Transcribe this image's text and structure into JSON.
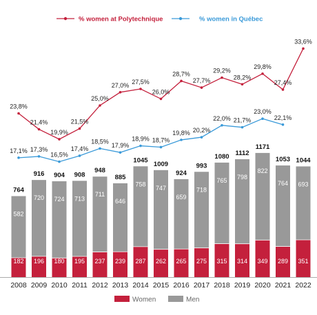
{
  "legend_top": [
    {
      "label": "% women at Polytechnique",
      "color": "#c4203c"
    },
    {
      "label": "% women in Québec",
      "color": "#3a9ad9"
    }
  ],
  "legend_bottom": [
    {
      "label": "Women",
      "color": "#c4203c"
    },
    {
      "label": "Men",
      "color": "#999999"
    }
  ],
  "chart_data": {
    "type": "bar",
    "stacked": true,
    "categories": [
      "2008",
      "2009",
      "2010",
      "2011",
      "2012",
      "2013",
      "2014",
      "2015",
      "2016",
      "2017",
      "2018",
      "2019",
      "2020",
      "2021",
      "2022"
    ],
    "totals": [
      764,
      916,
      904,
      908,
      948,
      885,
      1045,
      1009,
      924,
      993,
      1080,
      1112,
      1171,
      1053,
      1044
    ],
    "series": [
      {
        "name": "Women",
        "color": "#c4203c",
        "values": [
          182,
          196,
          180,
          195,
          237,
          239,
          287,
          262,
          265,
          275,
          315,
          314,
          349,
          289,
          351
        ]
      },
      {
        "name": "Men",
        "color": "#999999",
        "values": [
          582,
          720,
          724,
          713,
          711,
          646,
          758,
          747,
          659,
          718,
          765,
          798,
          822,
          764,
          693
        ]
      }
    ],
    "lines": [
      {
        "name": "% women at Polytechnique",
        "color": "#c4203c",
        "values": [
          23.8,
          21.4,
          19.9,
          21.5,
          25.0,
          27.0,
          27.5,
          26.0,
          28.7,
          27.7,
          29.2,
          28.2,
          29.8,
          27.4,
          33.6
        ],
        "labels": [
          "23,8%",
          "21,4%",
          "19,9%",
          "21,5%",
          "25,0%",
          "27,0%",
          "27,5%",
          "26,0%",
          "28,7%",
          "27,7%",
          "29,2%",
          "28,2%",
          "29,8%",
          "27,4%",
          "33,6%"
        ]
      },
      {
        "name": "% women in Québec",
        "color": "#3a9ad9",
        "values": [
          17.1,
          17.3,
          16.5,
          17.4,
          18.5,
          17.9,
          18.9,
          18.7,
          19.8,
          20.2,
          22.0,
          21.7,
          23.0,
          22.1,
          null
        ],
        "labels": [
          "17,1%",
          "17,3%",
          "16,5%",
          "17,4%",
          "18,5%",
          "17,9%",
          "18,9%",
          "18,7%",
          "19,8%",
          "20,2%",
          "22,0%",
          "21,7%",
          "23,0%",
          "22,1%",
          ""
        ]
      }
    ],
    "title": "",
    "xlabel": "",
    "ylabel": "",
    "grid": false,
    "legend": "top"
  }
}
